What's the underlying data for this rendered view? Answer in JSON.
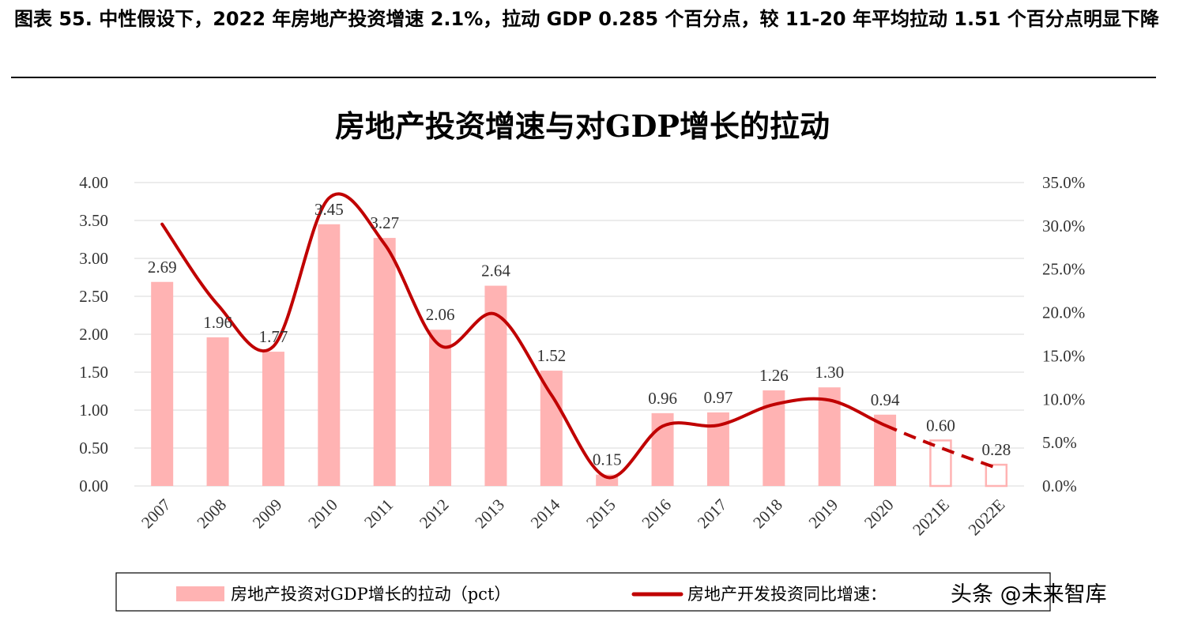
{
  "figure": {
    "caption": "图表 55. 中性假设下，2022 年房地产投资增速 2.1%，拉动 GDP 0.285 个百分点，较 11-20 年平均拉动 1.51 个百分点明显下降"
  },
  "watermark": {
    "text": "头条 @未来智库"
  },
  "chart_data": {
    "type": "bar",
    "title": "房地产投资增速与对GDP增长的拉动",
    "categories": [
      "2007",
      "2008",
      "2009",
      "2010",
      "2011",
      "2012",
      "2013",
      "2014",
      "2015",
      "2016",
      "2017",
      "2018",
      "2019",
      "2020",
      "2021E",
      "2022E"
    ],
    "series": [
      {
        "name": "房地产投资对GDP增长的拉动（pct）",
        "type": "bar",
        "axis": "left",
        "values": [
          2.69,
          1.96,
          1.77,
          3.45,
          3.27,
          2.06,
          2.64,
          1.52,
          0.15,
          0.96,
          0.97,
          1.26,
          1.3,
          0.94,
          0.6,
          0.28
        ],
        "labels": [
          "2.69",
          "1.96",
          "1.77",
          "3.45",
          "3.27",
          "2.06",
          "2.64",
          "1.52",
          "0.15",
          "0.96",
          "0.97",
          "1.26",
          "1.30",
          "0.94",
          "0.60",
          "0.28"
        ],
        "estimated_from_index": 14
      },
      {
        "name": "房地产开发投资同比增速：",
        "type": "line",
        "axis": "right",
        "values": [
          30.2,
          20.9,
          16.1,
          33.2,
          27.9,
          16.2,
          19.8,
          10.5,
          1.0,
          6.9,
          7.0,
          9.4,
          9.9,
          7.0,
          4.4,
          2.1
        ],
        "estimated_from_index": 14
      }
    ],
    "y_left": {
      "ylim": [
        0,
        4
      ],
      "ticks": [
        "0.00",
        "0.50",
        "1.00",
        "1.50",
        "2.00",
        "2.50",
        "3.00",
        "3.50",
        "4.00"
      ]
    },
    "y_right": {
      "ylim": [
        0,
        35
      ],
      "ticks": [
        "0.0%",
        "5.0%",
        "10.0%",
        "15.0%",
        "20.0%",
        "25.0%",
        "30.0%",
        "35.0%"
      ]
    },
    "grid": true,
    "legend": "bottom",
    "colors": {
      "bar": "#ffb3b3",
      "line": "#c00000",
      "grid": "#d9d9d9",
      "axis_text": "#333333"
    }
  }
}
